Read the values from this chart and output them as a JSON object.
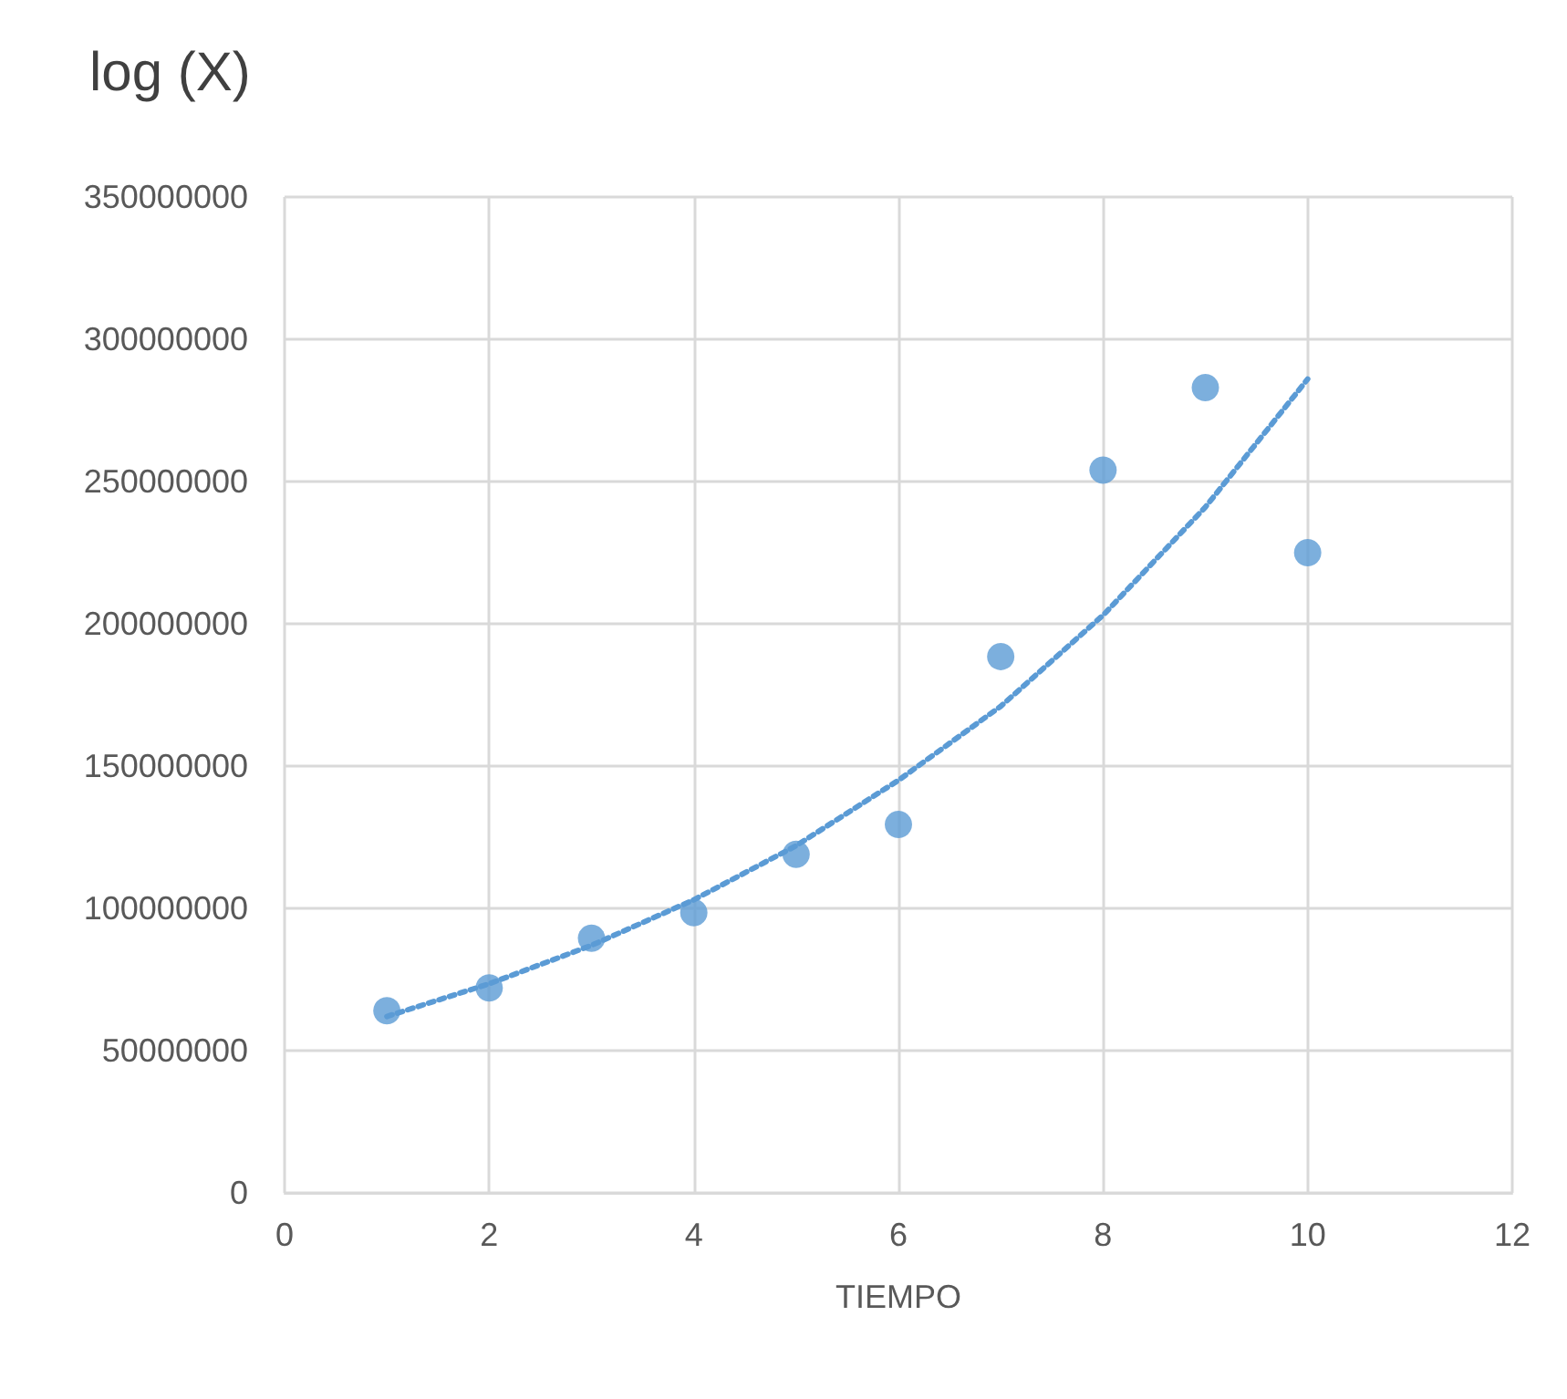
{
  "chart_data": {
    "type": "scatter",
    "title": "log (X)",
    "xlabel": "TIEMPO",
    "x": [
      1,
      2,
      3,
      4,
      5,
      6,
      7,
      8,
      9,
      10
    ],
    "series": [
      {
        "type": "scatter",
        "color": "#5b9bd5",
        "marker": "circle",
        "values": [
          64000000,
          72000000,
          89500000,
          98500000,
          119000000,
          129500000,
          188500000,
          254000000,
          283000000,
          225000000
        ]
      },
      {
        "type": "line",
        "color": "#5b9bd5",
        "marker": "none",
        "line_style": "dotted",
        "x": [
          1,
          2,
          3,
          4,
          5,
          6,
          7,
          8,
          9,
          10
        ],
        "values": [
          62000000,
          73500000,
          87000000,
          103000000,
          122000000,
          145000000,
          171000000,
          203000000,
          241000000,
          286000000
        ]
      }
    ],
    "xlim": [
      0,
      12
    ],
    "xticks": [
      0,
      2,
      4,
      6,
      8,
      10,
      12
    ],
    "ylim": [
      0,
      350000000
    ],
    "yticks": [
      0,
      50000000,
      100000000,
      150000000,
      200000000,
      250000000,
      300000000,
      350000000
    ],
    "grid": true
  }
}
